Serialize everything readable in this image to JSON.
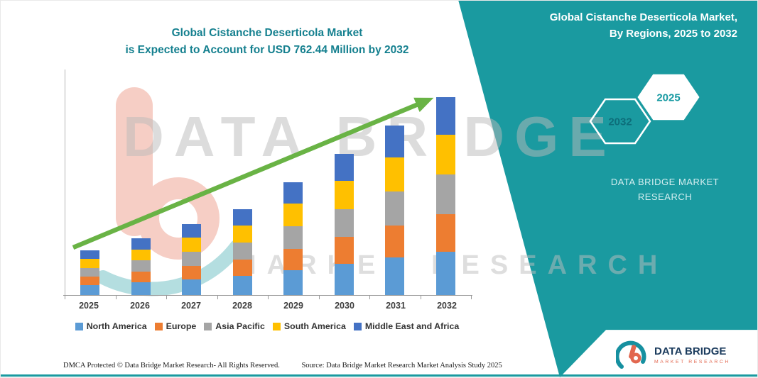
{
  "header": {
    "title_line1": "Global Cistanche Deserticola Market",
    "title_line2": "is Expected to Account for USD 762.44 Million by 2032"
  },
  "panel": {
    "title_line1": "Global Cistanche Deserticola Market,",
    "title_line2": "By Regions, 2025 to 2032",
    "hexagon_left": "2032",
    "hexagon_right": "2025",
    "brand_line1": "DATA BRIDGE MARKET",
    "brand_line2": "RESEARCH",
    "accent_color": "#1A9AA0"
  },
  "watermark": {
    "line1": "DATA BRIDGE",
    "line2": "MARKET RESEARCH"
  },
  "footer": {
    "dmca": "DMCA Protected © Data Bridge Market Research-  All Rights Reserved.",
    "source": "Source: Data Bridge Market Research  Market Analysis Study 2025"
  },
  "logo": {
    "name_line": "DATA BRIDGE",
    "sub_line": "MARKET RESEARCH"
  },
  "chart_data": {
    "type": "bar",
    "stacked": true,
    "title": "Global Cistanche Deserticola Market is Expected to Account for USD 762.44 Million by 2032",
    "categories": [
      "2025",
      "2026",
      "2027",
      "2028",
      "2029",
      "2030",
      "2031",
      "2032"
    ],
    "series": [
      {
        "name": "North America",
        "color": "#5B9BD5",
        "values": [
          37.7,
          47.9,
          59.8,
          73.0,
          95.7,
          119.6,
          143.5,
          167.7
        ]
      },
      {
        "name": "Europe",
        "color": "#ED7D31",
        "values": [
          32.5,
          41.3,
          51.6,
          63.0,
          82.6,
          103.3,
          124.0,
          144.9
        ]
      },
      {
        "name": "Asia Pacific",
        "color": "#A5A5A5",
        "values": [
          34.2,
          43.5,
          54.4,
          66.3,
          87.0,
          108.7,
          130.5,
          152.5
        ]
      },
      {
        "name": "South America",
        "color": "#FFC000",
        "values": [
          34.2,
          43.5,
          54.4,
          66.3,
          87.0,
          108.7,
          130.5,
          152.5
        ]
      },
      {
        "name": "Middle East and Africa",
        "color": "#4472C4",
        "values": [
          32.6,
          41.3,
          51.6,
          63.0,
          82.6,
          103.3,
          123.9,
          144.8
        ]
      }
    ],
    "totals": [
      171.2,
      217.5,
      271.8,
      331.6,
      434.9,
      543.6,
      652.4,
      762.44
    ],
    "unit": "USD Million",
    "xlabel": "",
    "ylabel": "",
    "ylim": [
      0,
      860
    ],
    "grid": false,
    "legend_position": "bottom",
    "trend_arrow_color": "#69B345",
    "annotations": [
      "upward green trend arrow across bars"
    ]
  }
}
